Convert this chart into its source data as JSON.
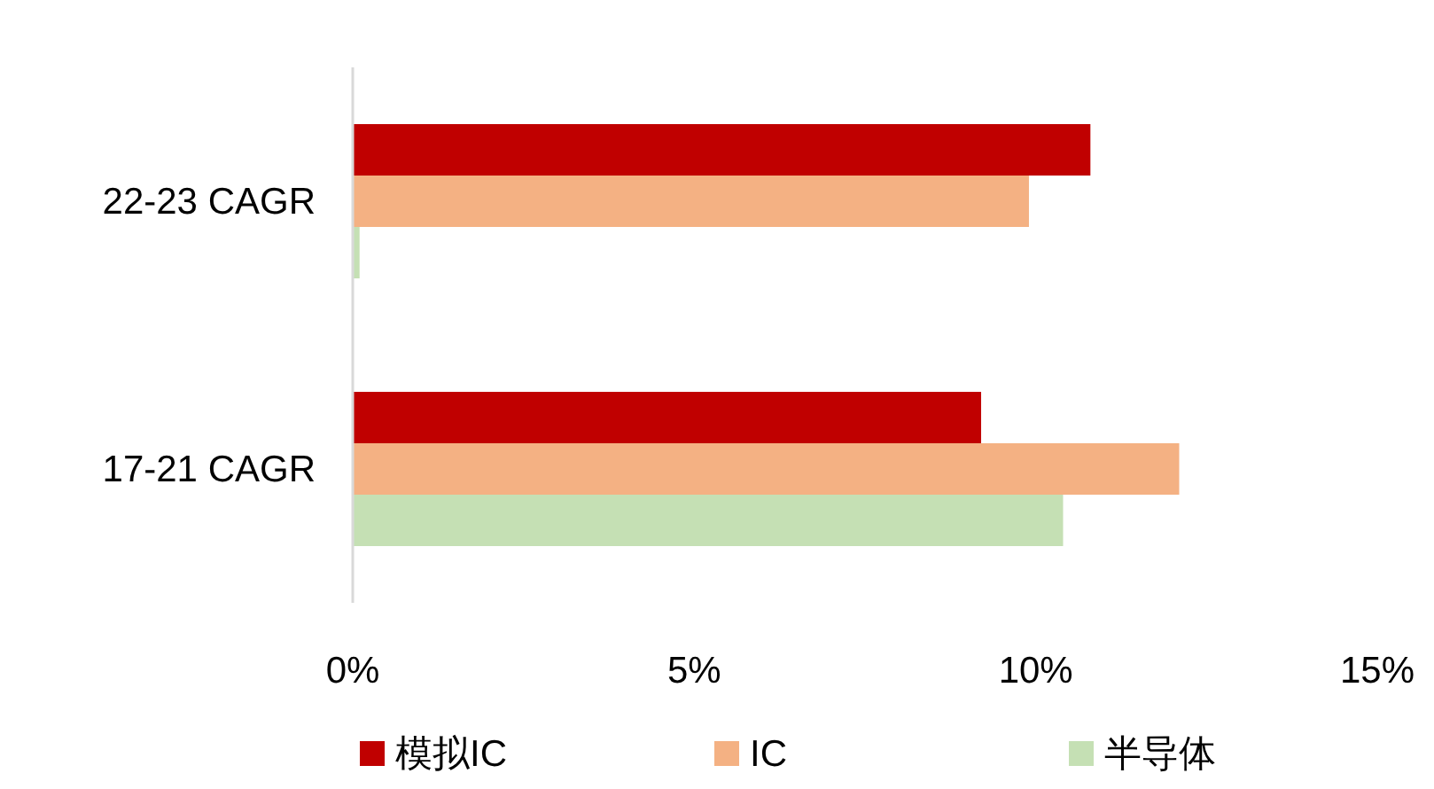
{
  "chart_data": {
    "type": "bar",
    "orientation": "horizontal",
    "categories": [
      "22-23 CAGR",
      "17-21 CAGR"
    ],
    "series": [
      {
        "name": "模拟IC",
        "color": "#c00000",
        "values": [
          10.8,
          9.2
        ]
      },
      {
        "name": "IC",
        "color": "#f4b183",
        "values": [
          9.9,
          12.1
        ]
      },
      {
        "name": "半导体",
        "color": "#c5e0b4",
        "values": [
          0.1,
          10.4
        ]
      }
    ],
    "xlim": [
      0,
      15
    ],
    "xticks": [
      {
        "value": 0,
        "label": "0%"
      },
      {
        "value": 5,
        "label": "5%"
      },
      {
        "value": 10,
        "label": "10%"
      },
      {
        "value": 15,
        "label": "15%"
      }
    ],
    "legend": "bottom"
  }
}
